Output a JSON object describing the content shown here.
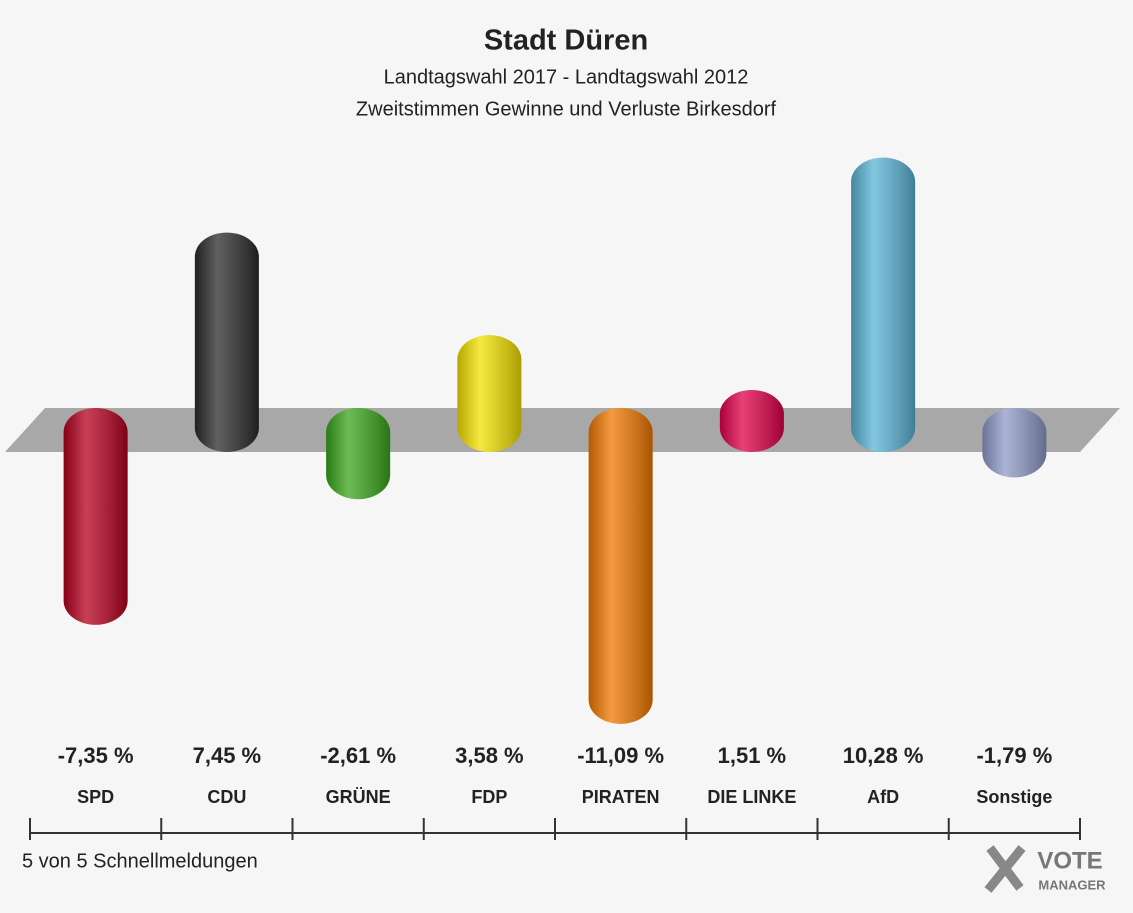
{
  "chart_data": {
    "type": "bar",
    "title": "Stadt Düren",
    "subtitle": [
      "Landtagswahl 2017 - Landtagswahl 2012",
      "Zweitstimmen Gewinne und Verluste Birkesdorf"
    ],
    "categories": [
      "SPD",
      "CDU",
      "GRÜNE",
      "FDP",
      "PIRATEN",
      "DIE LINKE",
      "AfD",
      "Sonstige"
    ],
    "values": [
      -7.35,
      7.45,
      -2.61,
      3.58,
      -11.09,
      1.51,
      10.28,
      -1.79
    ],
    "value_labels": [
      "-7,35 %",
      "7,45 %",
      "-2,61 %",
      "3,58 %",
      "-11,09 %",
      "1,51 %",
      "10,28 %",
      "-1,79 %"
    ],
    "colors": [
      "#b5001e",
      "#2b2b2b",
      "#3aa51c",
      "#f2e000",
      "#f07800",
      "#e0004a",
      "#5ab4d6",
      "#8f9ac8"
    ],
    "footnote": "5 von 5 Schnellmeldungen",
    "logo": [
      "VOTE",
      "MANAGER"
    ]
  }
}
